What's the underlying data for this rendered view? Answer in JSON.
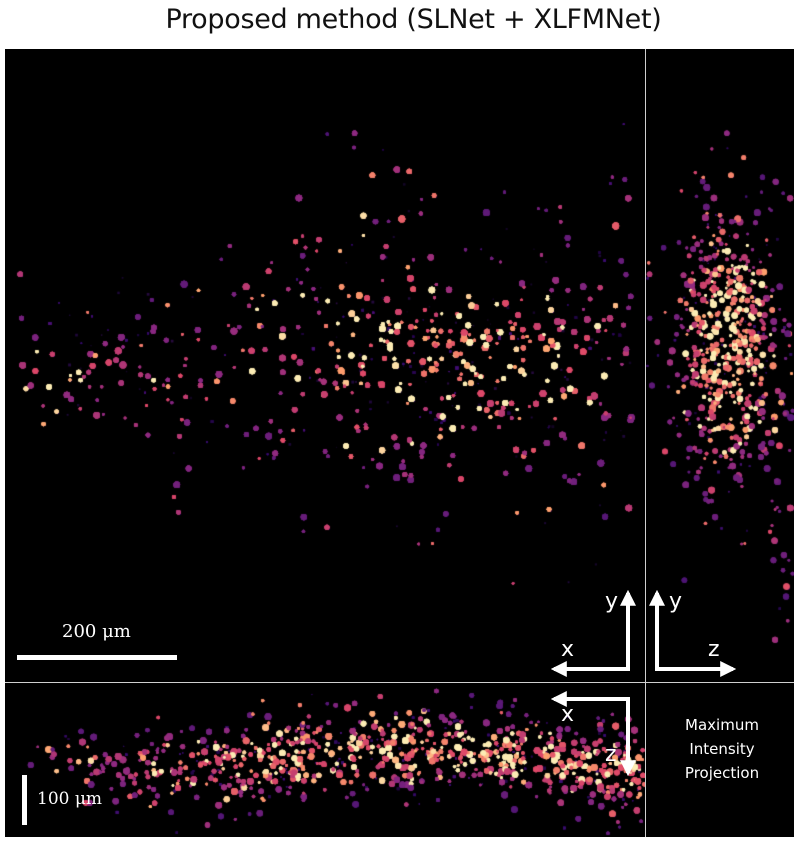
{
  "title": "Proposed method (SLNet + XLFMNet)",
  "panels": {
    "xy": {
      "name": "xy-projection"
    },
    "zy": {
      "name": "zy-projection"
    },
    "xz": {
      "name": "xz-projection"
    }
  },
  "scalebars": {
    "xy_label": "200 μm",
    "xz_label": "100 μm"
  },
  "axes": {
    "xy": {
      "horizontal": "x",
      "vertical": "y"
    },
    "zy": {
      "horizontal": "z",
      "vertical": "y"
    },
    "xz": {
      "horizontal": "x",
      "vertical": "z"
    }
  },
  "legend": {
    "mip_line1": "Maximum",
    "mip_line2": "Intensity",
    "mip_line3": "Projection"
  },
  "colormap": "magma",
  "colors": {
    "background": "#000000",
    "dim": "#3b1a7a",
    "mid": "#b5367a",
    "bright": "#fdd28e"
  }
}
